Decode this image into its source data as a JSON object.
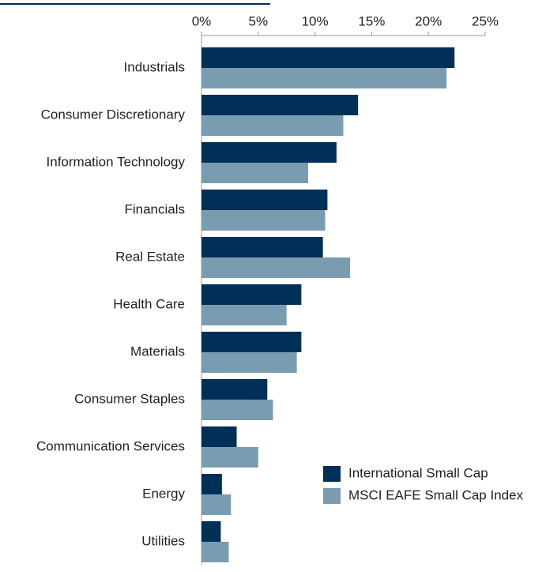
{
  "chart_data": {
    "type": "bar",
    "orientation": "horizontal",
    "categories": [
      "Industrials",
      "Consumer Discretionary",
      "Information Technology",
      "Financials",
      "Real Estate",
      "Health Care",
      "Materials",
      "Consumer Staples",
      "Communication Services",
      "Energy",
      "Utilities"
    ],
    "series": [
      {
        "name": "International Small Cap",
        "color": "#003057",
        "values": [
          22.3,
          13.8,
          11.9,
          11.1,
          10.7,
          8.8,
          8.8,
          5.8,
          3.1,
          1.8,
          1.7
        ]
      },
      {
        "name": "MSCI EAFE Small Cap Index",
        "color": "#7a9cb1",
        "values": [
          21.6,
          12.5,
          9.4,
          10.9,
          13.1,
          7.5,
          8.4,
          6.3,
          5.0,
          2.6,
          2.4
        ]
      }
    ],
    "xlim": [
      0,
      25
    ],
    "xticks": [
      {
        "value": 0,
        "label": "0%"
      },
      {
        "value": 5,
        "label": "5%"
      },
      {
        "value": 10,
        "label": "10%"
      },
      {
        "value": 15,
        "label": "15%"
      },
      {
        "value": 20,
        "label": "20%"
      },
      {
        "value": 25,
        "label": "25%"
      }
    ],
    "legend": "lower right"
  }
}
